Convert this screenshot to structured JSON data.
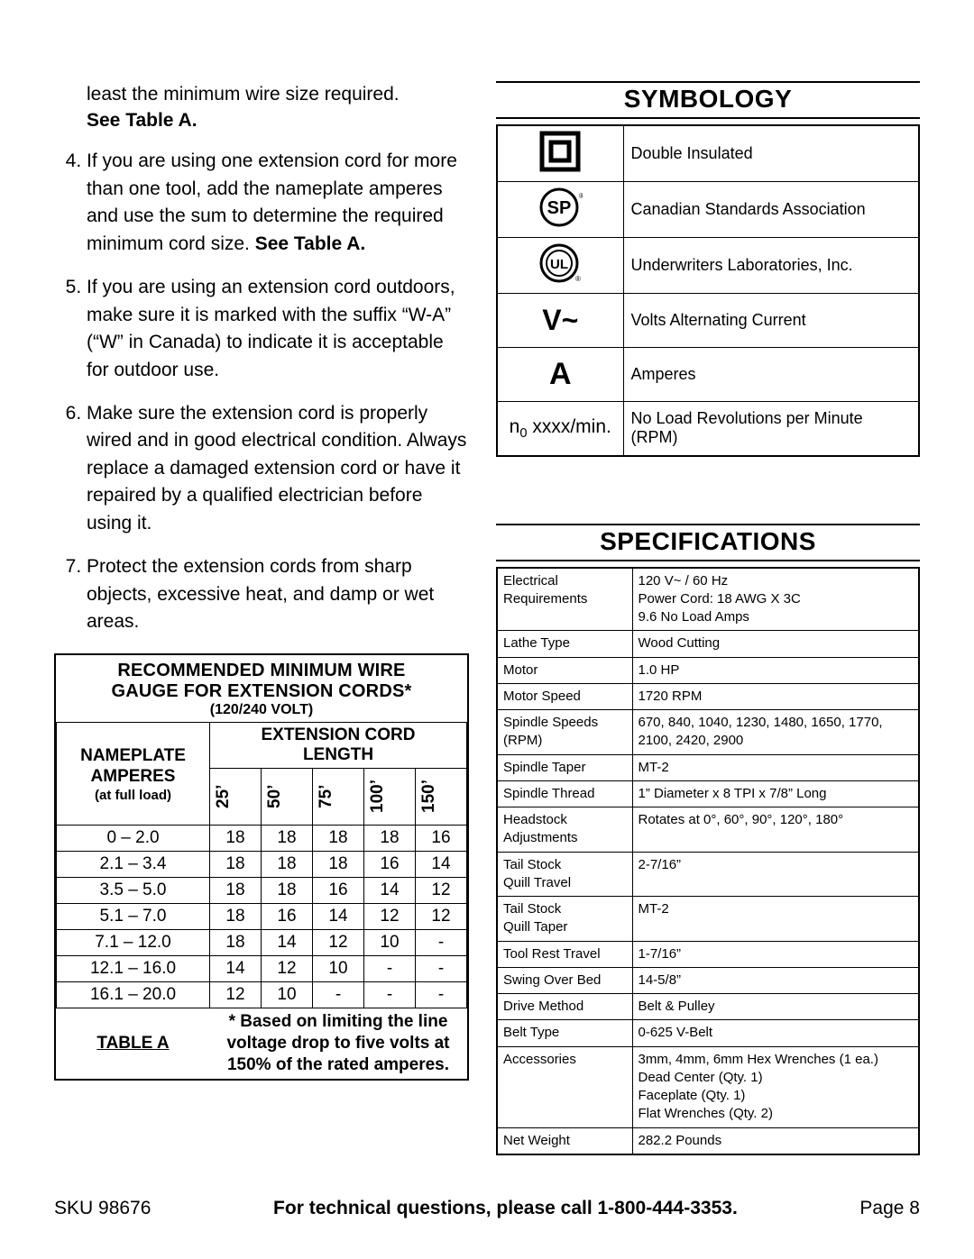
{
  "left": {
    "lead_fragment": "least the minimum wire size required.",
    "lead_bold": "See Table A.",
    "items": [
      {
        "n": "4.",
        "html": "If you are using one extension cord for more than one tool, add the nameplate amperes and use the sum to determine the required minimum cord size.  <b>See Table A.</b>"
      },
      {
        "n": "5.",
        "html": "If you are using an extension cord outdoors, make sure it is marked with the suffix “W-A” (“W” in Canada) to indicate it is acceptable for outdoor use."
      },
      {
        "n": "6.",
        "html": "Make sure the extension cord is properly wired and in good electrical condition.  Always replace a damaged extension cord or have it repaired by a qualified electrician before using it."
      },
      {
        "n": "7.",
        "html": "Protect the extension cords from sharp objects, excessive heat, and damp or wet areas."
      }
    ]
  },
  "tableA": {
    "title_l1": "RECOMMENDED MINIMUM WIRE",
    "title_l2": "GAUGE FOR EXTENSION CORDS*",
    "sub": "(120/240 VOLT)",
    "nameplate_hdr_l1": "NAMEPLATE",
    "nameplate_hdr_l2": "AMPERES",
    "nameplate_hdr_sub": "(at full load)",
    "length_hdr_l1": "EXTENSION CORD",
    "length_hdr_l2": "LENGTH",
    "lengths": [
      "25’",
      "50’",
      "75’",
      "100’",
      "150’"
    ],
    "rows": [
      {
        "range": "0 – 2.0",
        "v": [
          "18",
          "18",
          "18",
          "18",
          "16"
        ]
      },
      {
        "range": "2.1 – 3.4",
        "v": [
          "18",
          "18",
          "18",
          "16",
          "14"
        ]
      },
      {
        "range": "3.5 – 5.0",
        "v": [
          "18",
          "18",
          "16",
          "14",
          "12"
        ]
      },
      {
        "range": "5.1 – 7.0",
        "v": [
          "18",
          "16",
          "14",
          "12",
          "12"
        ]
      },
      {
        "range": "7.1 – 12.0",
        "v": [
          "18",
          "14",
          "12",
          "10",
          "-"
        ]
      },
      {
        "range": "12.1 – 16.0",
        "v": [
          "14",
          "12",
          "10",
          "-",
          "-"
        ]
      },
      {
        "range": "16.1 – 20.0",
        "v": [
          "12",
          "10",
          "-",
          "-",
          "-"
        ]
      }
    ],
    "foot_label": "TABLE A",
    "foot_note": "* Based on limiting the line voltage drop to five volts at 150% of the rated amperes."
  },
  "symbology": {
    "heading": "SYMBOLOGY",
    "rows": [
      {
        "icon": "double-insulated",
        "text": "Double Insulated"
      },
      {
        "icon": "csa",
        "text": "Canadian Standards Association"
      },
      {
        "icon": "ul",
        "text": "Underwriters Laboratories, Inc."
      },
      {
        "icon": "vac",
        "text": "Volts Alternating Current"
      },
      {
        "icon": "amp",
        "text": "Amperes"
      },
      {
        "icon": "rpm",
        "text": "No Load Revolutions per Minute (RPM)"
      }
    ],
    "rpm_symbol_html": "n<sub style='font-size:0.7em'>0</sub> xxxx/min."
  },
  "specs": {
    "heading": "SPECIFICATIONS",
    "rows": [
      {
        "k": "Electrical Requirements",
        "v": "120 V~ / 60 Hz<br>Power Cord: 18 AWG X 3C<br>9.6 No Load Amps"
      },
      {
        "k": "Lathe Type",
        "v": "Wood Cutting"
      },
      {
        "k": "Motor",
        "v": "1.0 HP"
      },
      {
        "k": "Motor Speed",
        "v": "1720 RPM"
      },
      {
        "k": "Spindle Speeds (RPM)",
        "v": "670, 840, 1040, 1230, 1480, 1650, 1770, 2100, 2420, 2900"
      },
      {
        "k": "Spindle Taper",
        "v": "MT-2"
      },
      {
        "k": "Spindle Thread",
        "v": "1” Diameter x 8 TPI x 7/8” Long"
      },
      {
        "k": "Headstock Adjustments",
        "v": "Rotates at 0°, 60°, 90°, 120°, 180°"
      },
      {
        "k": "Tail Stock<br>Quill Travel",
        "v": "2-7/16”"
      },
      {
        "k": "Tail Stock<br>Quill Taper",
        "v": "MT-2"
      },
      {
        "k": "Tool Rest Travel",
        "v": "1-7/16”"
      },
      {
        "k": "Swing Over Bed",
        "v": "14-5/8”"
      },
      {
        "k": "Drive Method",
        "v": "Belt & Pulley"
      },
      {
        "k": "Belt Type",
        "v": "0-625 V-Belt"
      },
      {
        "k": "Accessories",
        "v": "3mm, 4mm, 6mm Hex Wrenches (1 ea.)<br>Dead Center (Qty. 1)<br>Faceplate (Qty. 1)<br>Flat Wrenches (Qty. 2)"
      },
      {
        "k": "Net Weight",
        "v": "282.2 Pounds"
      }
    ]
  },
  "footer": {
    "sku": "SKU 98676",
    "mid": "For technical questions, please call 1-800-444-3353.",
    "page": "Page 8"
  }
}
